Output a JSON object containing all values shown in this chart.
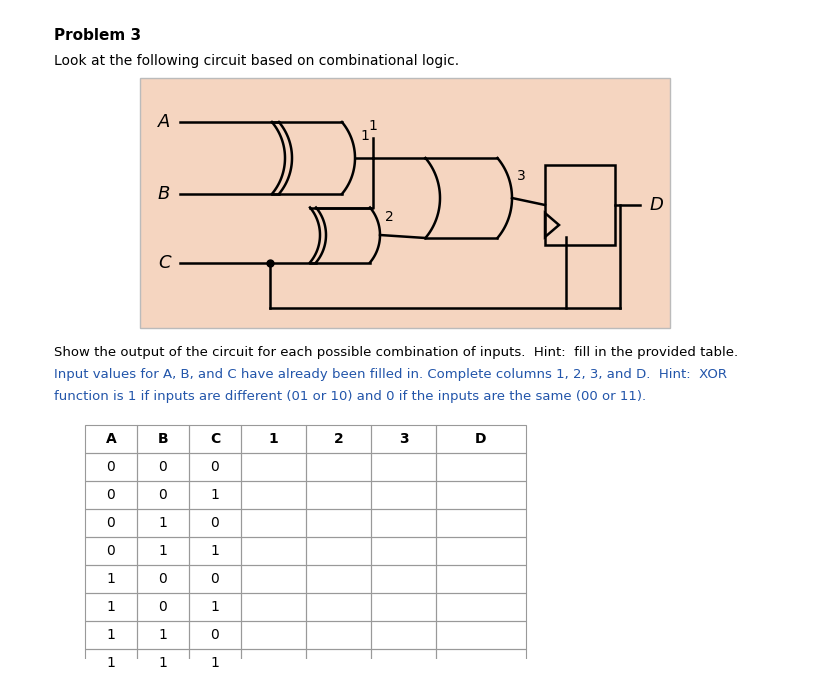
{
  "title": "Problem 3",
  "subtitle": "Look at the following circuit based on combinational logic.",
  "desc1": "Show the output of the circuit for each possible combination of inputs.  Hint:  fill in the provided table.",
  "desc2": "Input values for A, B, and C have already been filled in. Complete columns 1, 2, 3, and D.  Hint:  XOR",
  "desc3": "function is 1 if inputs are different (01 or 10) and 0 if the inputs are the same (00 or 11).",
  "table_headers": [
    "A",
    "B",
    "C",
    "1",
    "2",
    "3",
    "D"
  ],
  "table_data": [
    [
      0,
      0,
      0,
      "",
      "",
      "",
      ""
    ],
    [
      0,
      0,
      1,
      "",
      "",
      "",
      ""
    ],
    [
      0,
      1,
      0,
      "",
      "",
      "",
      ""
    ],
    [
      0,
      1,
      1,
      "",
      "",
      "",
      ""
    ],
    [
      1,
      0,
      0,
      "",
      "",
      "",
      ""
    ],
    [
      1,
      0,
      1,
      "",
      "",
      "",
      ""
    ],
    [
      1,
      1,
      0,
      "",
      "",
      "",
      ""
    ],
    [
      1,
      1,
      1,
      "",
      "",
      "",
      ""
    ]
  ],
  "circuit_bg": "#f5d5c0",
  "bg": "#ffffff",
  "text_color": "#000000",
  "blue_color": "#2255aa",
  "lw": 1.8
}
